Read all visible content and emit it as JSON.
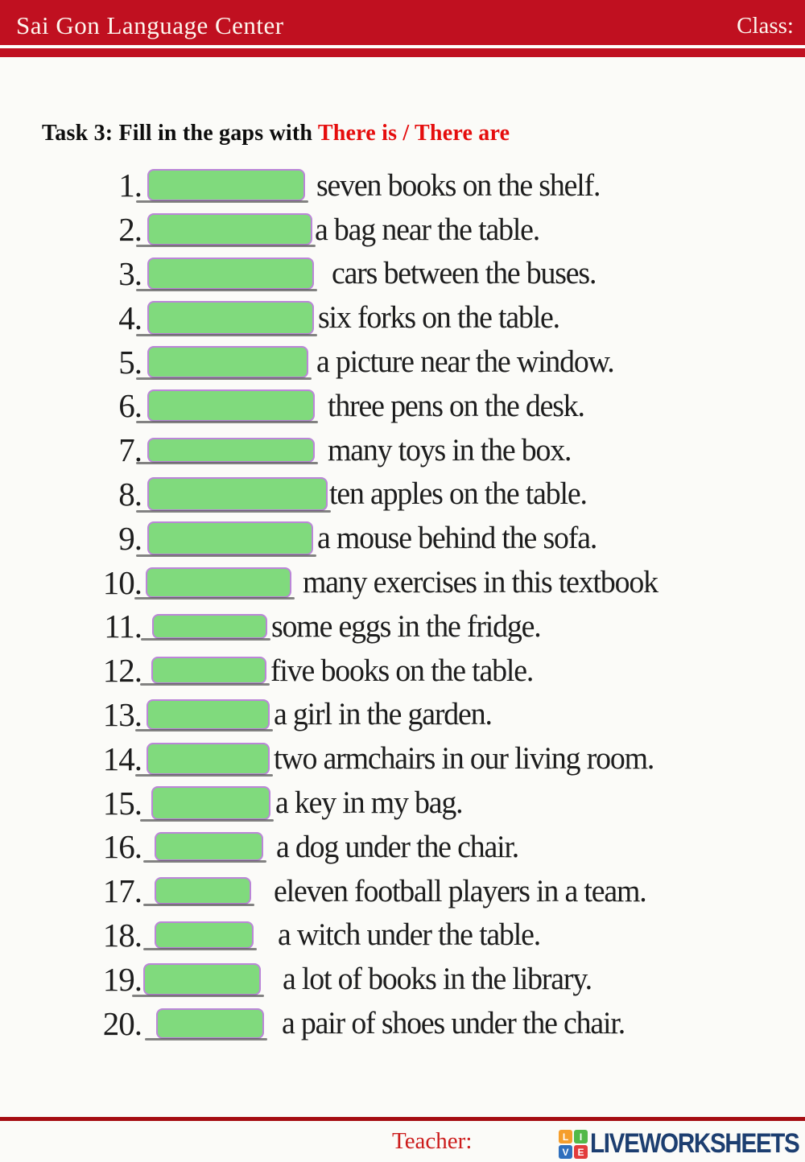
{
  "header": {
    "school_name": "Sai Gon Language Center",
    "class_label": "Class:"
  },
  "task": {
    "title_black": "Task 3: Fill in the gaps with ",
    "title_red": "There is / There are"
  },
  "items": [
    {
      "num": "1.",
      "text": "seven books on the shelf."
    },
    {
      "num": "2.",
      "text": "a bag near the table."
    },
    {
      "num": "3.",
      "text": "cars between the buses."
    },
    {
      "num": "4.",
      "text": "six forks on the table."
    },
    {
      "num": "5.",
      "text": "a picture near the window."
    },
    {
      "num": "6.",
      "text": "three pens on the desk."
    },
    {
      "num": "7.",
      "text": "many toys in the box."
    },
    {
      "num": "8.",
      "text": "ten apples on the table."
    },
    {
      "num": "9.",
      "text": "a mouse behind the sofa."
    },
    {
      "num": "10.",
      "text": "many exercises in this textbook"
    },
    {
      "num": "11.",
      "text": "some eggs in the fridge."
    },
    {
      "num": "12.",
      "text": "five books on the table."
    },
    {
      "num": "13.",
      "text": "a girl in the garden."
    },
    {
      "num": "14.",
      "text": "two armchairs in our living room."
    },
    {
      "num": "15.",
      "text": "a key in my bag."
    },
    {
      "num": "16.",
      "text": "a dog under the chair."
    },
    {
      "num": "17.",
      "text": "eleven football players in a team."
    },
    {
      "num": "18.",
      "text": "a witch under the table."
    },
    {
      "num": "19.",
      "text": "a lot of books in the library."
    },
    {
      "num": "20.",
      "text": "a pair of shoes under the chair."
    }
  ],
  "footer": {
    "teacher_label": "Teacher:",
    "logo_squares": {
      "tl": "L",
      "tr": "I",
      "bl": "V",
      "br": "E"
    },
    "logo_text": "LIVEWORKSHEETS"
  },
  "colors": {
    "header_red": "#c01020",
    "accent_red": "#e50d0d",
    "line_red": "#a50d12",
    "gap_green": "#80da7d",
    "gap_border": "#bb86d8",
    "logo_navy": "#1c3e70",
    "logo_orange": "#f59e2c",
    "logo_green": "#52b948",
    "logo_blue": "#2f6fbd",
    "logo_red": "#e23c3c",
    "teacher_red": "#cc1c1c"
  }
}
